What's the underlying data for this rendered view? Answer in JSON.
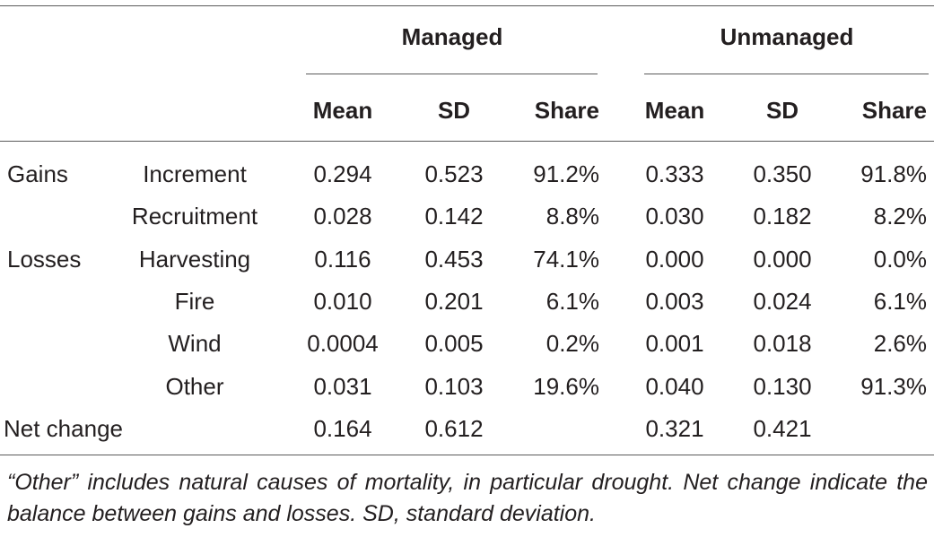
{
  "headers": {
    "group_managed": "Managed",
    "group_unmanaged": "Unmanaged",
    "columns": [
      "Mean",
      "SD",
      "Share",
      "Mean",
      "SD",
      "Share"
    ]
  },
  "rows": [
    {
      "cat": "Gains",
      "sub": "Increment",
      "vals": [
        "0.294",
        "0.523",
        "91.2%",
        "0.333",
        "0.350",
        "91.8%"
      ]
    },
    {
      "cat": "",
      "sub": "Recruitment",
      "vals": [
        "0.028",
        "0.142",
        "8.8%",
        "0.030",
        "0.182",
        "8.2%"
      ]
    },
    {
      "cat": "Losses",
      "sub": "Harvesting",
      "vals": [
        "0.116",
        "0.453",
        "74.1%",
        "0.000",
        "0.000",
        "0.0%"
      ]
    },
    {
      "cat": "",
      "sub": "Fire",
      "vals": [
        "0.010",
        "0.201",
        "6.1%",
        "0.003",
        "0.024",
        "6.1%"
      ]
    },
    {
      "cat": "",
      "sub": "Wind",
      "vals": [
        "0.0004",
        "0.005",
        "0.2%",
        "0.001",
        "0.018",
        "2.6%"
      ]
    },
    {
      "cat": "",
      "sub": "Other",
      "vals": [
        "0.031",
        "0.103",
        "19.6%",
        "0.040",
        "0.130",
        "91.3%"
      ]
    },
    {
      "cat": "Net change",
      "sub": "",
      "vals": [
        "0.164",
        "0.612",
        "",
        "0.321",
        "0.421",
        ""
      ]
    }
  ],
  "footnote": "“Other” includes natural causes of mortality, in particular drought. Net change indicate the balance between gains and losses. SD, standard deviation."
}
